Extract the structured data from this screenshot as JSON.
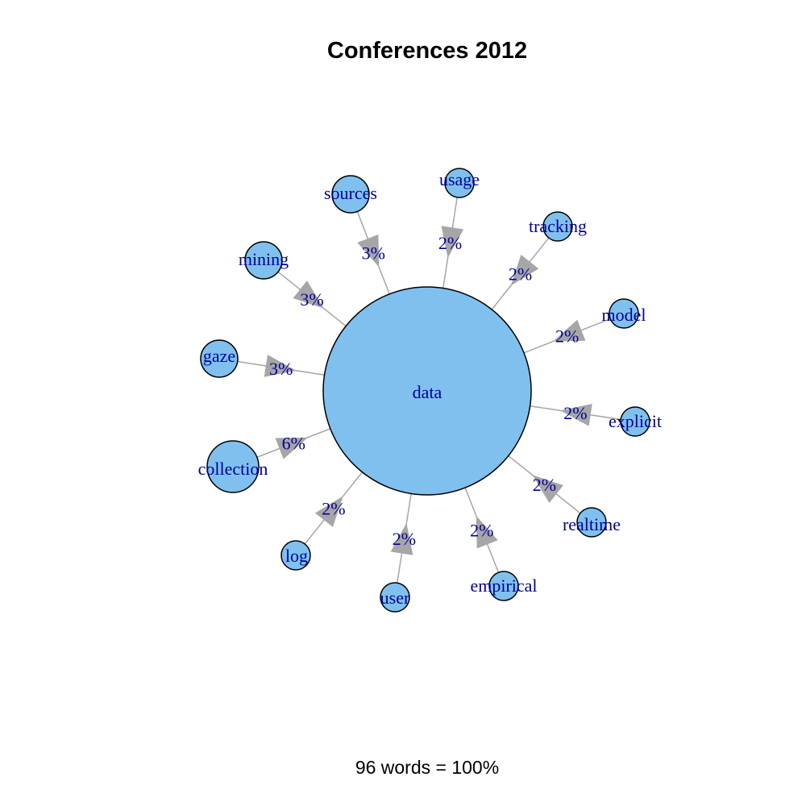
{
  "title": "Conferences 2012",
  "footer": "96 words = 100%",
  "colors": {
    "node_fill": "#80c0ee",
    "node_stroke": "#000000",
    "edge": "#a6a6a6",
    "label": "#000099"
  },
  "center": {
    "label": "data"
  },
  "terms": [
    {
      "label": "usage",
      "percent": "2%",
      "weight": 2
    },
    {
      "label": "tracking",
      "percent": "2%",
      "weight": 2
    },
    {
      "label": "model",
      "percent": "2%",
      "weight": 2
    },
    {
      "label": "explicit",
      "percent": "2%",
      "weight": 2
    },
    {
      "label": "realtime",
      "percent": "2%",
      "weight": 2
    },
    {
      "label": "empirical",
      "percent": "2%",
      "weight": 2
    },
    {
      "label": "user",
      "percent": "2%",
      "weight": 2
    },
    {
      "label": "log",
      "percent": "2%",
      "weight": 2
    },
    {
      "label": "collection",
      "percent": "6%",
      "weight": 6
    },
    {
      "label": "gaze",
      "percent": "3%",
      "weight": 3
    },
    {
      "label": "mining",
      "percent": "3%",
      "weight": 3
    },
    {
      "label": "sources",
      "percent": "3%",
      "weight": 3
    }
  ]
}
